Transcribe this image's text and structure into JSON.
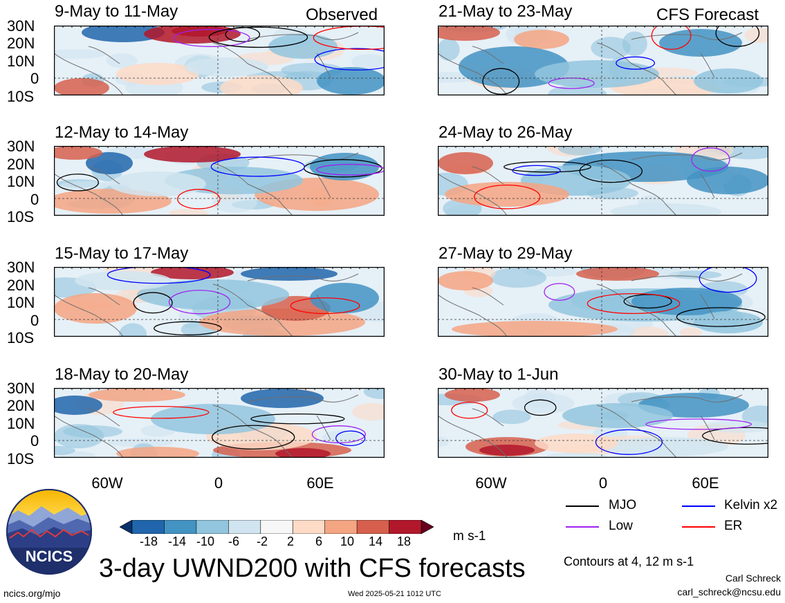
{
  "figure_title": "3-day UWND200 with CFS forecasts",
  "units": "m s-1",
  "contour_note": "Contours at 4, 12 m s-1",
  "author_name": "Carl Schreck",
  "author_email": "carl_schreck@ncsu.edu",
  "site_url": "ncics.org/mjo",
  "timestamp": "Wed 2025-05-21 1012 UTC",
  "logo_text": "NCICS",
  "column_labels": {
    "left": "Observed",
    "right": "CFS Forecast"
  },
  "lat_labels": [
    "30N",
    "20N",
    "10N",
    "0",
    "10S"
  ],
  "lon_labels": [
    "60W",
    "0",
    "60E"
  ],
  "panels_left": [
    {
      "title": "9-May to 11-May"
    },
    {
      "title": "12-May to 14-May"
    },
    {
      "title": "15-May to 17-May"
    },
    {
      "title": "18-May to 20-May"
    }
  ],
  "panels_right": [
    {
      "title": "21-May to 23-May"
    },
    {
      "title": "24-May to 26-May"
    },
    {
      "title": "27-May to 29-May"
    },
    {
      "title": "30-May to 1-Jun"
    }
  ],
  "colorbar": {
    "ticks": [
      "-18",
      "-14",
      "-10",
      "-6",
      "-2",
      "2",
      "6",
      "10",
      "14",
      "18"
    ],
    "colors": [
      "#08306b",
      "#2166ac",
      "#4393c3",
      "#92c5de",
      "#d1e5f0",
      "#f7f7f7",
      "#fddbc7",
      "#f4a582",
      "#d6604d",
      "#b2182b",
      "#67001f"
    ]
  },
  "legend": [
    {
      "label": "MJO",
      "color": "#000000"
    },
    {
      "label": "Kelvin x2",
      "color": "#0000ff"
    },
    {
      "label": "Low",
      "color": "#a020f0"
    },
    {
      "label": "ER",
      "color": "#ff0000"
    }
  ]
}
